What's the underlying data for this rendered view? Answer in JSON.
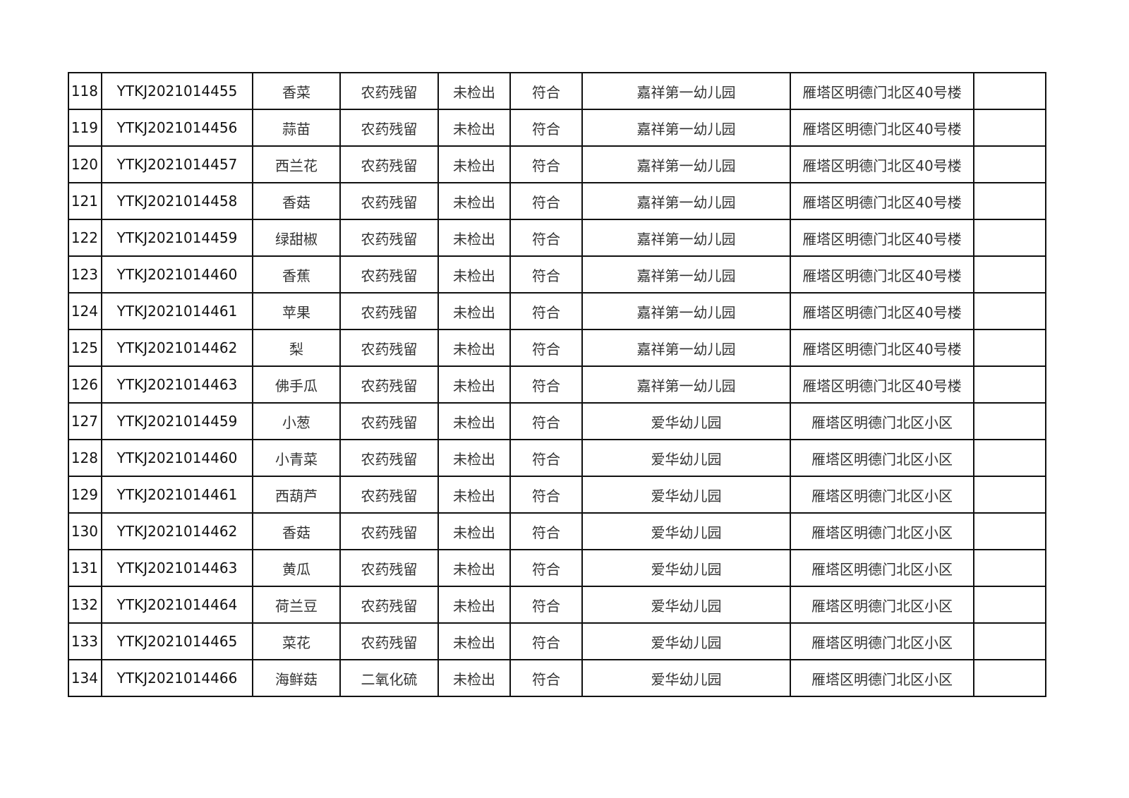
{
  "rows": [
    {
      "no": "118",
      "code": "YTKJ2021014455",
      "sample": "香菜",
      "item": "农药残留",
      "result": "未检出",
      "verdict": "符合",
      "unit": "嘉祥第一幼儿园",
      "address": "雁塔区明德门北区40号楼",
      "note": ""
    },
    {
      "no": "119",
      "code": "YTKJ2021014456",
      "sample": "蒜苗",
      "item": "农药残留",
      "result": "未检出",
      "verdict": "符合",
      "unit": "嘉祥第一幼儿园",
      "address": "雁塔区明德门北区40号楼",
      "note": ""
    },
    {
      "no": "120",
      "code": "YTKJ2021014457",
      "sample": "西兰花",
      "item": "农药残留",
      "result": "未检出",
      "verdict": "符合",
      "unit": "嘉祥第一幼儿园",
      "address": "雁塔区明德门北区40号楼",
      "note": ""
    },
    {
      "no": "121",
      "code": "YTKJ2021014458",
      "sample": "香菇",
      "item": "农药残留",
      "result": "未检出",
      "verdict": "符合",
      "unit": "嘉祥第一幼儿园",
      "address": "雁塔区明德门北区40号楼",
      "note": ""
    },
    {
      "no": "122",
      "code": "YTKJ2021014459",
      "sample": "绿甜椒",
      "item": "农药残留",
      "result": "未检出",
      "verdict": "符合",
      "unit": "嘉祥第一幼儿园",
      "address": "雁塔区明德门北区40号楼",
      "note": ""
    },
    {
      "no": "123",
      "code": "YTKJ2021014460",
      "sample": "香蕉",
      "item": "农药残留",
      "result": "未检出",
      "verdict": "符合",
      "unit": "嘉祥第一幼儿园",
      "address": "雁塔区明德门北区40号楼",
      "note": ""
    },
    {
      "no": "124",
      "code": "YTKJ2021014461",
      "sample": "苹果",
      "item": "农药残留",
      "result": "未检出",
      "verdict": "符合",
      "unit": "嘉祥第一幼儿园",
      "address": "雁塔区明德门北区40号楼",
      "note": ""
    },
    {
      "no": "125",
      "code": "YTKJ2021014462",
      "sample": "梨",
      "item": "农药残留",
      "result": "未检出",
      "verdict": "符合",
      "unit": "嘉祥第一幼儿园",
      "address": "雁塔区明德门北区40号楼",
      "note": ""
    },
    {
      "no": "126",
      "code": "YTKJ2021014463",
      "sample": "佛手瓜",
      "item": "农药残留",
      "result": "未检出",
      "verdict": "符合",
      "unit": "嘉祥第一幼儿园",
      "address": "雁塔区明德门北区40号楼",
      "note": ""
    },
    {
      "no": "127",
      "code": "YTKJ2021014459",
      "sample": "小葱",
      "item": "农药残留",
      "result": "未检出",
      "verdict": "符合",
      "unit": "爱华幼儿园",
      "address": "雁塔区明德门北区小区",
      "note": ""
    },
    {
      "no": "128",
      "code": "YTKJ2021014460",
      "sample": "小青菜",
      "item": "农药残留",
      "result": "未检出",
      "verdict": "符合",
      "unit": "爱华幼儿园",
      "address": "雁塔区明德门北区小区",
      "note": ""
    },
    {
      "no": "129",
      "code": "YTKJ2021014461",
      "sample": "西葫芦",
      "item": "农药残留",
      "result": "未检出",
      "verdict": "符合",
      "unit": "爱华幼儿园",
      "address": "雁塔区明德门北区小区",
      "note": ""
    },
    {
      "no": "130",
      "code": "YTKJ2021014462",
      "sample": "香菇",
      "item": "农药残留",
      "result": "未检出",
      "verdict": "符合",
      "unit": "爱华幼儿园",
      "address": "雁塔区明德门北区小区",
      "note": ""
    },
    {
      "no": "131",
      "code": "YTKJ2021014463",
      "sample": "黄瓜",
      "item": "农药残留",
      "result": "未检出",
      "verdict": "符合",
      "unit": "爱华幼儿园",
      "address": "雁塔区明德门北区小区",
      "note": ""
    },
    {
      "no": "132",
      "code": "YTKJ2021014464",
      "sample": "荷兰豆",
      "item": "农药残留",
      "result": "未检出",
      "verdict": "符合",
      "unit": "爱华幼儿园",
      "address": "雁塔区明德门北区小区",
      "note": ""
    },
    {
      "no": "133",
      "code": "YTKJ2021014465",
      "sample": "菜花",
      "item": "农药残留",
      "result": "未检出",
      "verdict": "符合",
      "unit": "爱华幼儿园",
      "address": "雁塔区明德门北区小区",
      "note": ""
    },
    {
      "no": "134",
      "code": "YTKJ2021014466",
      "sample": "海鲜菇",
      "item": "二氧化硫",
      "result": "未检出",
      "verdict": "符合",
      "unit": "爱华幼儿园",
      "address": "雁塔区明德门北区小区",
      "note": ""
    }
  ]
}
